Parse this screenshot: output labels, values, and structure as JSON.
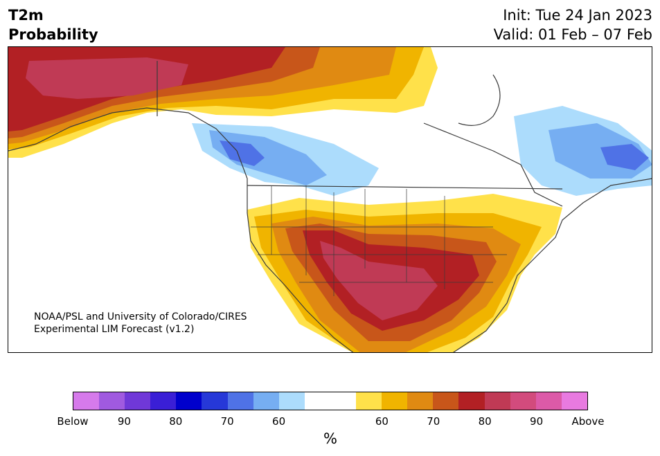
{
  "header": {
    "variable": "T2m",
    "product": "Probability",
    "init": "Init: Tue 24 Jan 2023",
    "valid": "Valid: 01 Feb – 07 Feb"
  },
  "credit": {
    "line1": "NOAA/PSL and University of Colorado/CIRES",
    "line2": "Experimental LIM Forecast (v1.2)"
  },
  "colorbar": {
    "unit": "%",
    "tick_labels": [
      "Below",
      "90",
      "80",
      "70",
      "60",
      "60",
      "70",
      "80",
      "90",
      "Above"
    ],
    "colors": [
      "#d67aeb",
      "#a05ae0",
      "#7038d8",
      "#3a1fd6",
      "#0000cc",
      "#2638d8",
      "#4f72e6",
      "#76aef2",
      "#acdcfc",
      "#ffffff",
      "#ffffff",
      "#ffe14a",
      "#f0b400",
      "#e08a12",
      "#c8561a",
      "#b22024",
      "#c03a55",
      "#d24b7d",
      "#dc5aa8",
      "#e87ae0"
    ]
  },
  "map": {
    "region": "North America",
    "colors": {
      "land_lines": "#3a3a3a",
      "warm_60": "#ffe14a",
      "warm_65": "#f0b400",
      "warm_70": "#e08a12",
      "warm_75": "#c8561a",
      "warm_80": "#b22024",
      "warm_85": "#c03a55",
      "cold_60": "#acdcfc",
      "cold_65": "#76aef2",
      "cold_70": "#4f72e6"
    }
  }
}
